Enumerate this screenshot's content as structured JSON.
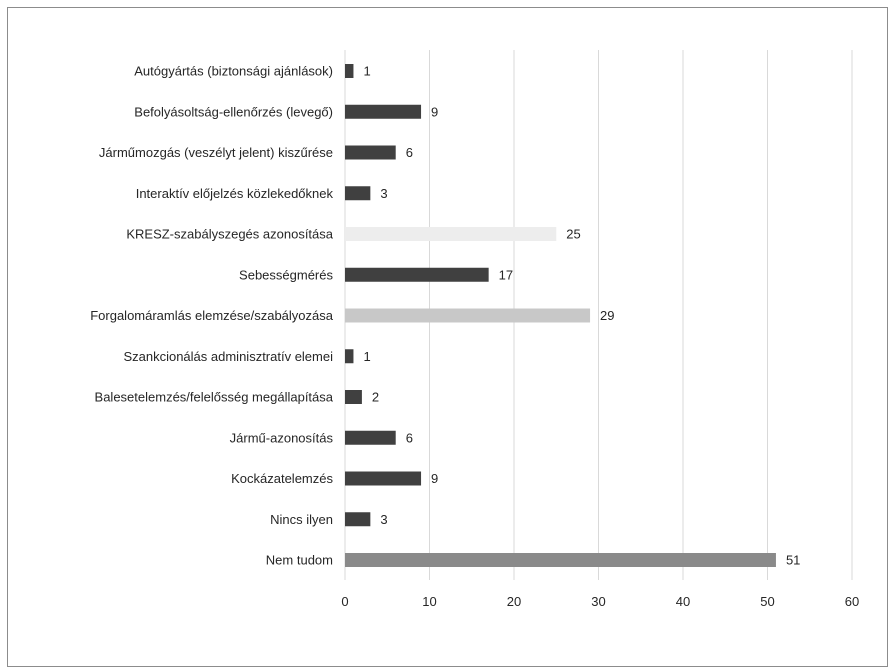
{
  "chart_data": {
    "type": "bar",
    "orientation": "horizontal",
    "categories": [
      "Autógyártás (biztonsági ajánlások)",
      "Befolyásoltság-ellenőrzés (levegő)",
      "Járműmozgás (veszélyt jelent) kiszűrése",
      "Interaktív előjelzés közlekedőknek",
      "KRESZ-szabályszegés azonosítása",
      "Sebességmérés",
      "Forgalomáramlás elemzése/szabályozása",
      "Szankcionálás adminisztratív elemei",
      "Balesetelemzés/felelősség megállapítása",
      "Jármű-azonosítás",
      "Kockázatelemzés",
      "Nincs ilyen",
      "Nem tudom"
    ],
    "values": [
      1,
      9,
      6,
      3,
      25,
      17,
      29,
      1,
      2,
      6,
      9,
      3,
      51
    ],
    "bar_colors": [
      "#404040",
      "#404040",
      "#404040",
      "#404040",
      "#ededed",
      "#404040",
      "#c8c8c8",
      "#404040",
      "#404040",
      "#404040",
      "#404040",
      "#404040",
      "#8a8a8a"
    ],
    "data_labels": [
      "1",
      "9",
      "6",
      "3",
      "25",
      "17",
      "29",
      "1",
      "2",
      "6",
      "9",
      "3",
      "51"
    ],
    "x_ticks": [
      "0",
      "10",
      "20",
      "30",
      "40",
      "50",
      "60"
    ],
    "xlim": [
      0,
      60
    ],
    "grid": "vertical",
    "legend": "none"
  }
}
